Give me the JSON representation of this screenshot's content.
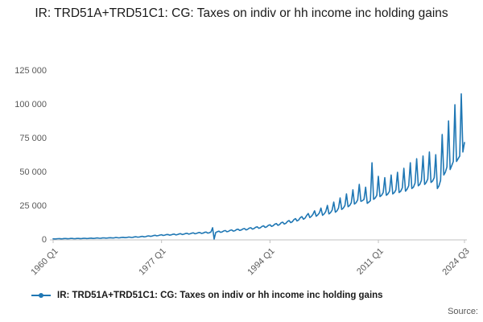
{
  "title": "IR: TRD51A+TRD51C1: CG: Taxes on indiv or hh income inc holding gains",
  "legend_label": "IR: TRD51A+TRD51C1: CG: Taxes on indiv or hh income inc holding gains",
  "source_label": "Source:",
  "colors": {
    "line": "#1f77b4",
    "axis": "#c0c0c0",
    "tick_text": "#595959"
  },
  "chart_data": {
    "type": "line",
    "title": "IR: TRD51A+TRD51C1: CG: Taxes on indiv or hh income inc holding gains",
    "xlabel": "",
    "ylabel": "",
    "frequency": "quarterly",
    "x_start": "1960 Q1",
    "x_end": "2024 Q3",
    "ylim": [
      0,
      125000
    ],
    "grid": false,
    "legend_position": "bottom-left",
    "color": "#1f77b4",
    "y_ticks": [
      {
        "label": "0",
        "value": 0
      },
      {
        "label": "25 000",
        "value": 25000
      },
      {
        "label": "50 000",
        "value": 50000
      },
      {
        "label": "75 000",
        "value": 75000
      },
      {
        "label": "100 000",
        "value": 100000
      },
      {
        "label": "125 000",
        "value": 125000
      }
    ],
    "x_ticks": [
      {
        "label": "1960 Q1",
        "index": 0
      },
      {
        "label": "1977 Q1",
        "index": 68
      },
      {
        "label": "1994 Q1",
        "index": 136
      },
      {
        "label": "2011 Q1",
        "index": 204
      },
      {
        "label": "2024 Q3",
        "index": 258
      }
    ],
    "values": [
      800,
      700,
      750,
      900,
      950,
      800,
      850,
      1000,
      1000,
      850,
      900,
      1050,
      1050,
      900,
      950,
      1100,
      1100,
      950,
      1000,
      1150,
      1200,
      1000,
      1050,
      1250,
      1300,
      1100,
      1150,
      1350,
      1400,
      1200,
      1250,
      1450,
      1500,
      1300,
      1350,
      1550,
      1600,
      1400,
      1450,
      1700,
      1750,
      1500,
      1600,
      1850,
      1900,
      1650,
      1750,
      2000,
      2100,
      1800,
      1900,
      2200,
      2300,
      2000,
      2100,
      2450,
      2600,
      2250,
      2400,
      2800,
      3000,
      2600,
      2800,
      3200,
      3400,
      3000,
      3200,
      3600,
      3800,
      3300,
      3500,
      3900,
      4000,
      3500,
      3700,
      4100,
      4300,
      3700,
      3900,
      4400,
      4600,
      4000,
      4200,
      4700,
      4900,
      4300,
      4500,
      5000,
      5200,
      4500,
      4800,
      5300,
      5500,
      4800,
      5000,
      5600,
      5800,
      5000,
      5300,
      5900,
      9000,
      600,
      5500,
      6100,
      6400,
      5600,
      5900,
      6600,
      6900,
      6000,
      6300,
      7100,
      7400,
      6500,
      6800,
      7600,
      7900,
      7000,
      7300,
      8100,
      8400,
      7400,
      7800,
      8700,
      9000,
      8000,
      8400,
      9300,
      9700,
      8600,
      9000,
      10000,
      10400,
      9200,
      9700,
      10800,
      11200,
      10000,
      10500,
      11600,
      12100,
      10800,
      11300,
      12600,
      13100,
      11700,
      12300,
      13700,
      14300,
      12800,
      13400,
      15000,
      15700,
      14000,
      14700,
      16400,
      17200,
      15300,
      16100,
      18000,
      19500,
      16500,
      17500,
      19000,
      21500,
      17500,
      18500,
      20000,
      23500,
      18200,
      19200,
      21000,
      25500,
      19200,
      20200,
      22000,
      28000,
      20500,
      21500,
      23500,
      31000,
      22500,
      23500,
      25500,
      34000,
      24500,
      25500,
      27500,
      37000,
      26500,
      27500,
      29500,
      41000,
      28500,
      29000,
      30000,
      39000,
      27000,
      28000,
      29000,
      57000,
      30000,
      31000,
      33000,
      47000,
      32000,
      33000,
      35000,
      46000,
      33000,
      34000,
      36000,
      48000,
      34000,
      35000,
      37000,
      50000,
      35000,
      36000,
      38500,
      53000,
      36000,
      37500,
      40000,
      57000,
      38000,
      39000,
      42000,
      60000,
      40000,
      41000,
      44000,
      62000,
      41000,
      42500,
      45000,
      65000,
      42500,
      43500,
      46000,
      63000,
      38000,
      40000,
      44000,
      78000,
      48000,
      50000,
      54000,
      88000,
      52000,
      55000,
      58000,
      100000,
      58000,
      60000,
      62000,
      108000,
      65000,
      72000
    ]
  }
}
